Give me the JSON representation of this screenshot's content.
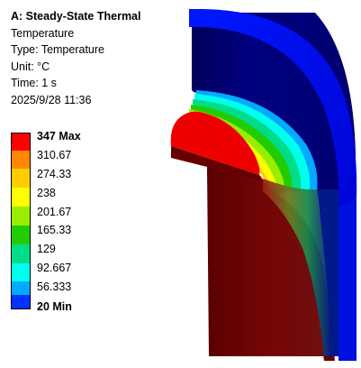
{
  "info": {
    "title": "A: Steady-State Thermal",
    "result": "Temperature",
    "type_line": "Type: Temperature",
    "unit_line": "Unit: °C",
    "time_line": "Time: 1 s",
    "timestamp": "2025/9/28 11:36"
  },
  "legend": {
    "labels": [
      "347 Max",
      "310.67",
      "274.33",
      "238",
      "201.67",
      "165.33",
      "129",
      "92.667",
      "56.333",
      "20 Min"
    ],
    "colors": [
      "#ff0000",
      "#ff8800",
      "#ffcc00",
      "#ffff00",
      "#99ee00",
      "#22cc00",
      "#00dd88",
      "#00ffee",
      "#00aaff",
      "#0033ff"
    ]
  },
  "model": {
    "colors": {
      "outer_face": "#0000cc",
      "outer_face_dark": "#00005a",
      "inner_body": "#6b0000",
      "inner_body_light": "#8a1010",
      "hot": "#ee0000"
    }
  }
}
